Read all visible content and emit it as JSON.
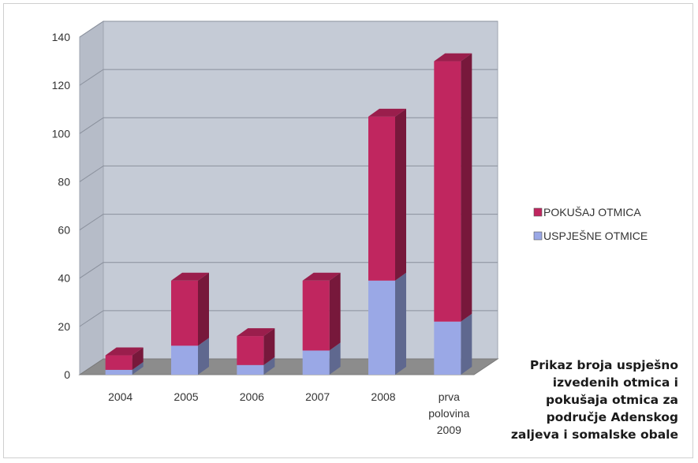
{
  "chart_data": {
    "type": "bar",
    "stacked": true,
    "three_d": true,
    "categories": [
      "2004",
      "2005",
      "2006",
      "2007",
      "2008",
      "prva polovina 2009"
    ],
    "category_lines": [
      [
        "2004"
      ],
      [
        "2005"
      ],
      [
        "2006"
      ],
      [
        "2007"
      ],
      [
        "2008"
      ],
      [
        "prva",
        "polovina",
        "2009"
      ]
    ],
    "series": [
      {
        "name": "USPJEŠNE OTMICE",
        "color": "#9aa8e6",
        "values": [
          2,
          12,
          4,
          10,
          39,
          22
        ]
      },
      {
        "name": "POKUŠAJ OTMICA",
        "color": "#c0265f",
        "values": [
          6,
          27,
          12,
          29,
          68,
          108
        ]
      }
    ],
    "legend_order": [
      "POKUŠAJ OTMICA",
      "USPJEŠNE OTMICE"
    ],
    "ylim": [
      0,
      140
    ],
    "yticks": [
      0,
      20,
      40,
      60,
      80,
      100,
      120,
      140
    ],
    "grid": true,
    "legend_position": "right",
    "wall_color": "#c5cbd6",
    "floor_color": "#8c8c8c"
  },
  "caption": {
    "lines": [
      "Prikaz broja uspješno",
      "izvedenih otmica i",
      "pokušaja otmica za",
      "područje Adenskog",
      "zaljeva i somalske obale"
    ]
  }
}
